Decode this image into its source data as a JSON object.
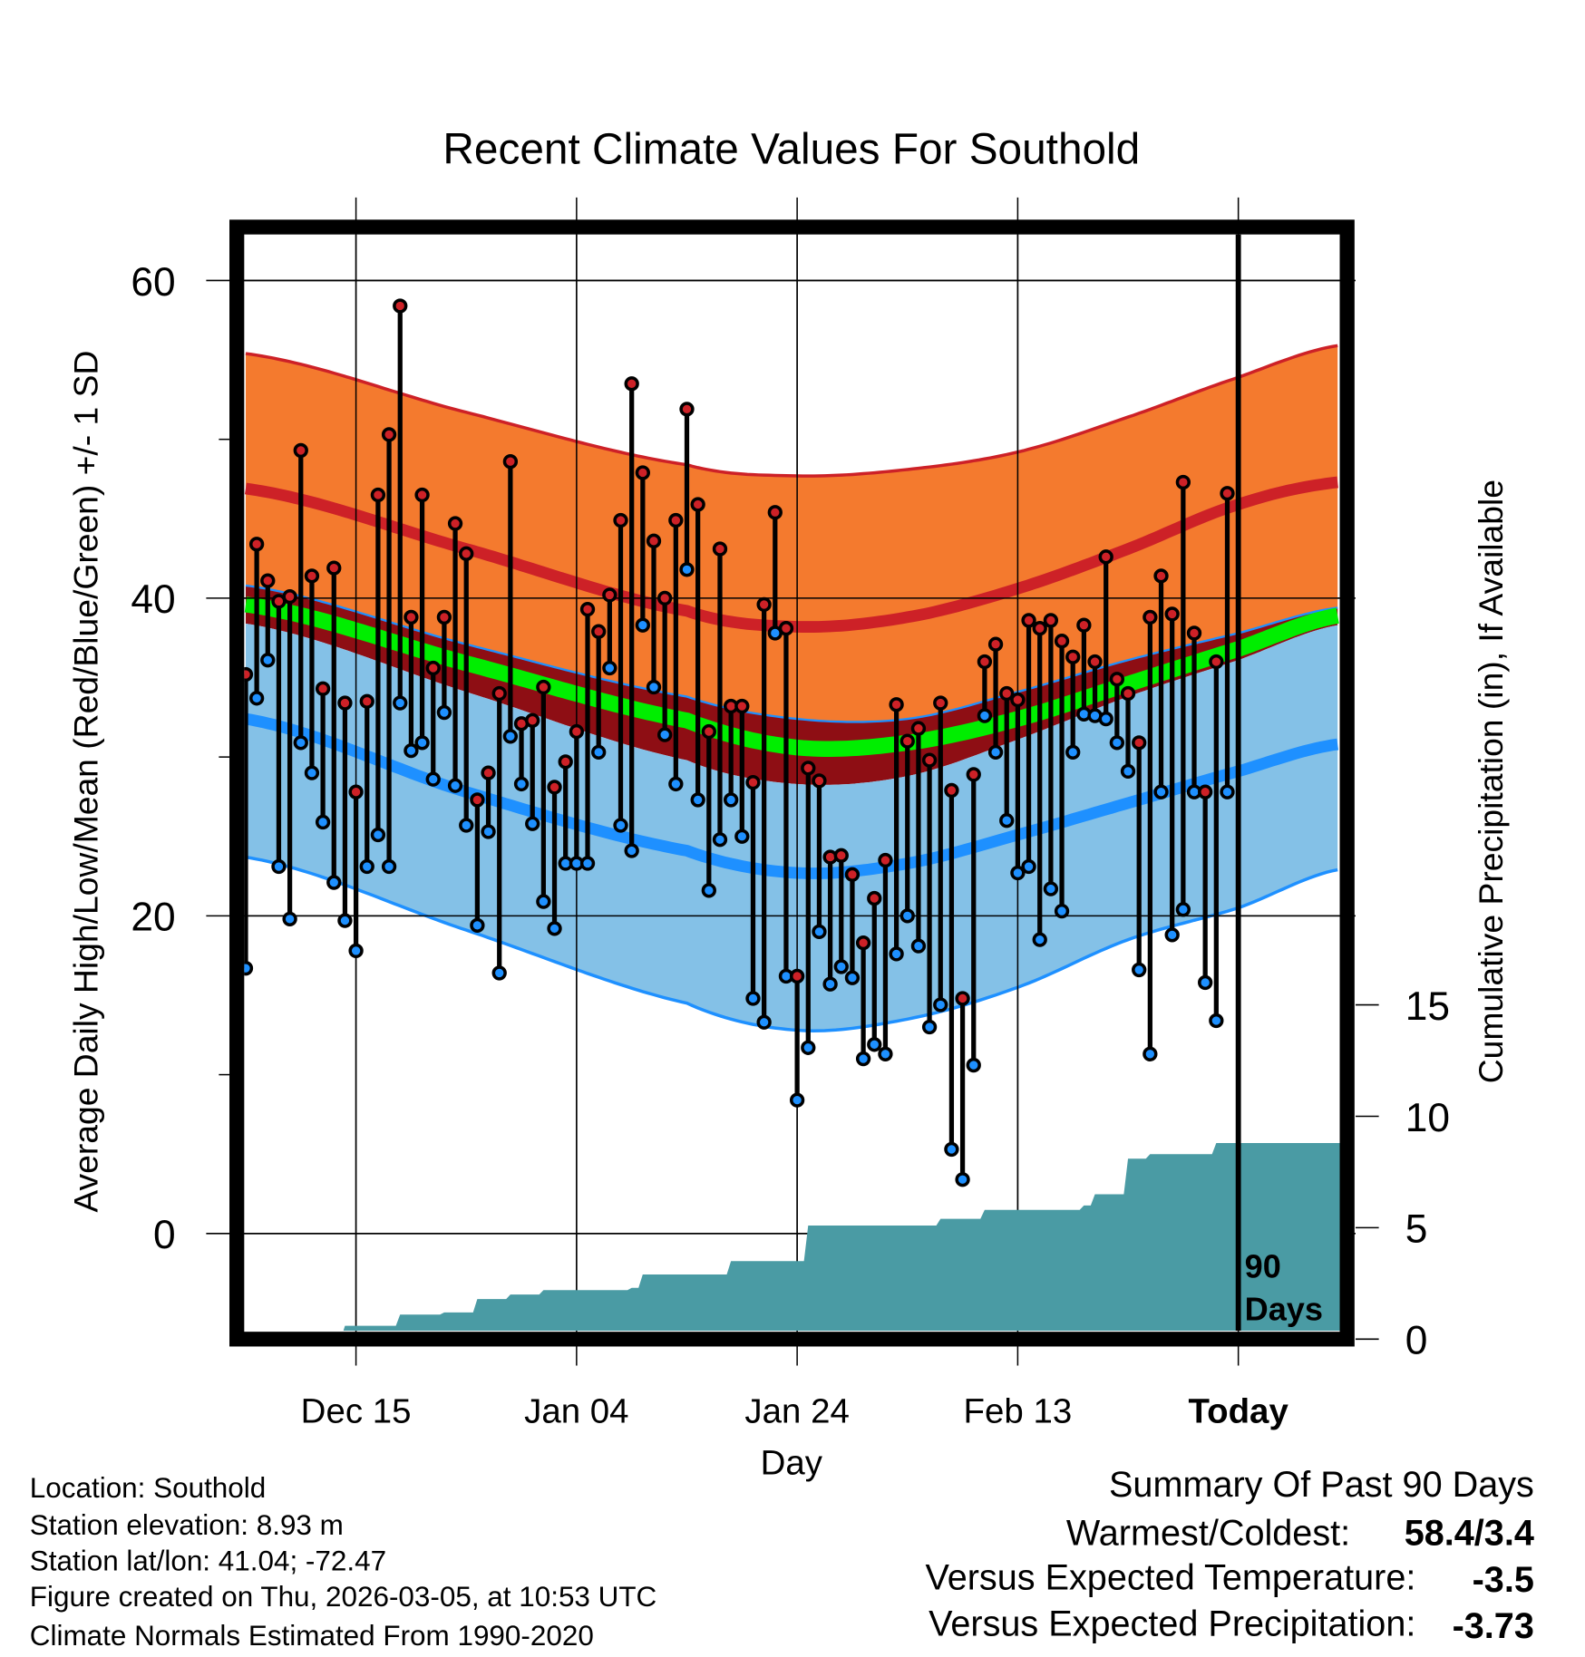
{
  "chart_data": {
    "type": "line",
    "title": "Recent Climate Values For Southold",
    "xlabel": "Day",
    "ylabel": "Average Daily High/Low/Mean (Red/Blue/Green) +/- 1 SD",
    "y2label": "Cumulative Precipitation (in), If Available",
    "x_ticks": [
      {
        "day": -80,
        "label": "Dec 15"
      },
      {
        "day": -60,
        "label": "Jan 04"
      },
      {
        "day": -40,
        "label": "Jan 24"
      },
      {
        "day": -20,
        "label": "Feb 13"
      },
      {
        "day": 0,
        "label": "Today"
      }
    ],
    "xlim_days": [
      -90.1,
      9.2
    ],
    "ylim": [
      -6.1,
      62.9
    ],
    "y_ticks": [
      {
        "v": 0,
        "label": "0"
      },
      {
        "v": 20,
        "label": "20"
      },
      {
        "v": 40,
        "label": "40"
      },
      {
        "v": 60,
        "label": "60"
      }
    ],
    "y_minor_ticks": [
      10,
      30,
      50
    ],
    "y2_ticks": [
      {
        "v": 0,
        "label": "0"
      },
      {
        "v": 5,
        "label": "5"
      },
      {
        "v": 10,
        "label": "10"
      },
      {
        "v": 15,
        "label": "15"
      }
    ],
    "today_marker": {
      "day": 0,
      "label_line1": "90",
      "label_line2": "Days"
    },
    "grid": true,
    "first_day_offset": -90,
    "daily_high": [
      35.2,
      43.4,
      41.1,
      39.8,
      40.1,
      49.3,
      41.4,
      34.3,
      41.9,
      33.4,
      27.8,
      33.5,
      46.5,
      50.3,
      58.4,
      38.8,
      46.5,
      35.6,
      38.8,
      44.7,
      42.8,
      27.3,
      29.0,
      34.0,
      48.6,
      32.1,
      32.3,
      34.4,
      28.1,
      29.7,
      31.6,
      39.3,
      37.9,
      40.2,
      44.9,
      53.5,
      47.9,
      43.6,
      40.0,
      44.9,
      51.9,
      45.9,
      31.6,
      43.1,
      33.2,
      33.2,
      28.4,
      39.6,
      45.4,
      38.1,
      16.2,
      29.3,
      28.5,
      23.7,
      23.8,
      22.6,
      18.3,
      21.1,
      23.5,
      33.3,
      31.0,
      31.8,
      29.8,
      33.4,
      27.9,
      14.8,
      28.9,
      36.0,
      37.1,
      34.0,
      33.6,
      38.6,
      38.1,
      38.6,
      37.3,
      36.3,
      38.3,
      36.0,
      42.6,
      34.9,
      34.0,
      30.9,
      38.8,
      41.4,
      39.0,
      47.3,
      37.8,
      27.8,
      36.0,
      46.6
    ],
    "daily_low": [
      16.7,
      33.7,
      36.1,
      23.1,
      19.8,
      30.9,
      29.0,
      25.9,
      22.1,
      19.7,
      17.8,
      23.1,
      25.1,
      23.1,
      33.4,
      30.4,
      30.9,
      28.6,
      32.8,
      28.2,
      25.7,
      19.4,
      25.3,
      16.4,
      31.3,
      28.3,
      25.8,
      20.9,
      19.2,
      23.3,
      23.3,
      23.3,
      30.3,
      35.6,
      25.7,
      24.1,
      38.3,
      34.4,
      31.4,
      28.3,
      41.8,
      27.3,
      21.6,
      24.8,
      27.3,
      25.0,
      14.8,
      13.3,
      37.8,
      16.2,
      8.4,
      11.7,
      19.0,
      15.7,
      16.8,
      16.1,
      11.0,
      11.9,
      11.3,
      17.6,
      20.0,
      18.1,
      13.0,
      14.4,
      5.3,
      3.4,
      10.6,
      32.6,
      30.3,
      26.0,
      22.7,
      23.1,
      18.5,
      21.7,
      20.3,
      30.3,
      32.7,
      32.6,
      32.4,
      30.9,
      29.1,
      16.6,
      11.3,
      27.8,
      18.8,
      20.4,
      27.8,
      15.8,
      13.4,
      27.8
    ],
    "normals_days": [
      -90,
      -70,
      -50,
      -40,
      -30,
      -20,
      -10,
      0,
      9
    ],
    "normal_high_plus_sd": [
      55.4,
      51.7,
      48.4,
      47.7,
      48.1,
      49.2,
      51.4,
      53.9,
      55.9
    ],
    "normal_high": [
      46.9,
      43.1,
      39.2,
      38.2,
      38.8,
      40.6,
      43.1,
      45.9,
      47.3
    ],
    "normal_high_minus_sd": [
      40.8,
      37.1,
      33.8,
      32.4,
      32.4,
      34.1,
      36.1,
      37.8,
      39.4
    ],
    "normal_mean": [
      39.6,
      35.9,
      32.3,
      30.6,
      30.9,
      32.4,
      34.6,
      36.8,
      38.9
    ],
    "normal_low_plus_sd": [
      38.4,
      34.1,
      29.8,
      28.3,
      28.8,
      31.1,
      33.8,
      36.1,
      38.3
    ],
    "normal_low": [
      32.4,
      27.8,
      24.1,
      22.7,
      23.3,
      25.1,
      27.1,
      29.1,
      30.8
    ],
    "normal_low_minus_sd": [
      23.7,
      19.1,
      14.5,
      12.8,
      13.5,
      15.5,
      18.5,
      20.5,
      22.9
    ],
    "cumulative_precip_steps": [
      [
        -90,
        0
      ],
      [
        -81,
        0.6
      ],
      [
        -76,
        1.1
      ],
      [
        -72,
        1.2
      ],
      [
        -69,
        1.8
      ],
      [
        -66,
        2.0
      ],
      [
        -63,
        2.2
      ],
      [
        -55,
        2.3
      ],
      [
        -54,
        2.9
      ],
      [
        -46,
        3.5
      ],
      [
        -39,
        5.1
      ],
      [
        -27,
        5.4
      ],
      [
        -23,
        5.8
      ],
      [
        -14,
        6.0
      ],
      [
        -13,
        6.5
      ],
      [
        -10,
        8.1
      ],
      [
        -8,
        8.3
      ],
      [
        -2,
        8.8
      ],
      [
        9.2,
        8.8
      ]
    ],
    "colors": {
      "high_band": "#f47a2e",
      "high_line": "#cd2127",
      "mid_band": "#8e0e14",
      "mean": "#00ee00",
      "low_band": "#84c1e7",
      "low_line": "#1e90ff",
      "precip": "#4a9ba4",
      "warm_dot": "#cd2127",
      "cold_dot": "#1e90ff"
    }
  },
  "info": {
    "location": "Location: Southold",
    "elevation": "Station elevation: 8.93 m",
    "latlon": "Station lat/lon: 41.04; -72.47",
    "created": "Figure created on Thu, 2026-03-05, at 10:53 UTC",
    "normals": "Climate Normals Estimated From 1990-2020"
  },
  "summary": {
    "title": "Summary Of Past 90 Days",
    "warmest_coldest_label": "Warmest/Coldest:",
    "warmest_coldest_value": "58.4/3.4",
    "temp_label": "Versus Expected Temperature:",
    "temp_value": "-3.5",
    "temp_color": "#1e90ff",
    "precip_label": "Versus Expected Precipitation:",
    "precip_value": "-3.73",
    "precip_color": "#a0522d"
  }
}
